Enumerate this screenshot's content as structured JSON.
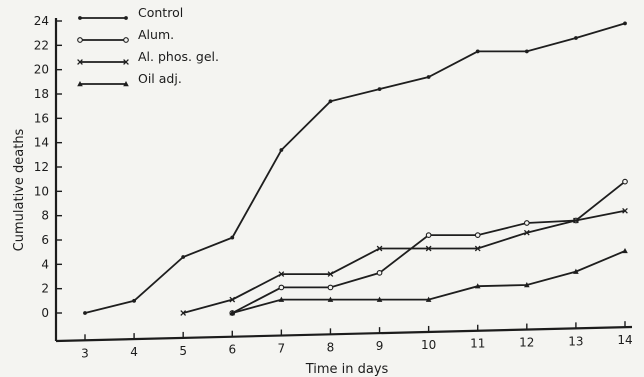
{
  "chart_data": {
    "type": "line",
    "title": "",
    "xlabel": "Time in days",
    "ylabel": "Cumulative deaths",
    "xlim": [
      3,
      14
    ],
    "ylim": [
      0,
      24
    ],
    "x_ticks": [
      3,
      4,
      5,
      6,
      7,
      8,
      9,
      10,
      11,
      12,
      13,
      14
    ],
    "y_ticks": [
      0,
      2,
      4,
      6,
      8,
      10,
      12,
      14,
      16,
      18,
      20,
      22,
      24
    ],
    "grid": false,
    "legend_position": "top-left",
    "series": [
      {
        "name": "Control",
        "marker": "dot",
        "x": [
          3,
          4,
          5,
          6,
          7,
          8,
          9,
          10,
          11,
          12,
          13,
          14
        ],
        "y": [
          0,
          1,
          4.6,
          6.2,
          13.4,
          17.4,
          18.4,
          19.4,
          21.5,
          21.5,
          22.6,
          23.8
        ]
      },
      {
        "name": "Alum.",
        "marker": "circle",
        "x": [
          6,
          7,
          8,
          9,
          10,
          11,
          12,
          13,
          14
        ],
        "y": [
          0,
          2.1,
          2.1,
          3.3,
          6.4,
          6.4,
          7.4,
          7.6,
          10.8
        ]
      },
      {
        "name": "Al. phos. gel.",
        "marker": "cross",
        "x": [
          5,
          6,
          7,
          8,
          9,
          10,
          11,
          12,
          13,
          14
        ],
        "y": [
          0,
          1.1,
          3.2,
          3.2,
          5.3,
          5.3,
          5.3,
          6.6,
          7.6,
          8.4
        ]
      },
      {
        "name": "Oil adj.",
        "marker": "triangle",
        "x": [
          6,
          7,
          8,
          9,
          10,
          11,
          12,
          13,
          14
        ],
        "y": [
          0,
          1.1,
          1.1,
          1.1,
          1.1,
          2.2,
          2.3,
          3.4,
          5.1
        ]
      }
    ]
  }
}
